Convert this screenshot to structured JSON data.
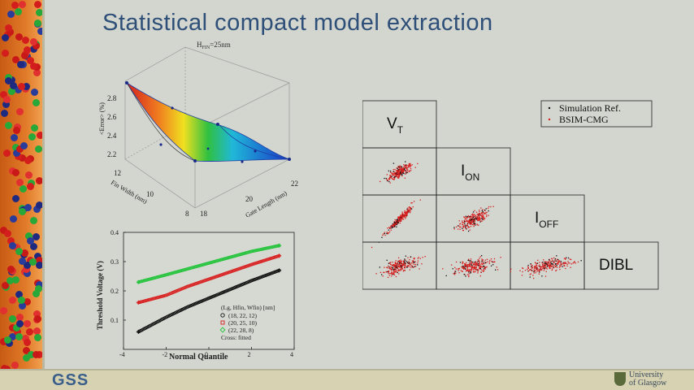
{
  "slide": {
    "title": "Statistical compact model extraction"
  },
  "surface_plot": {
    "header_h": "H",
    "header_sub": "FIN",
    "header_val": "=25nm",
    "z_label": "<Error> (%)",
    "z_ticks": [
      "2.2",
      "2.4",
      "2.6",
      "2.8"
    ],
    "x_label": "Gate Length (nm)",
    "x_ticks": [
      "18",
      "20",
      "22"
    ],
    "y_label": "Fin Width (nm)",
    "y_ticks": [
      "8",
      "10",
      "12"
    ]
  },
  "chart_data": {
    "type": "scatter",
    "xlabel": "Normal Quantile",
    "ylabel": "Threshold Voltage (V)",
    "xlim": [
      -4,
      4
    ],
    "ylim": [
      0,
      0.4
    ],
    "x_ticks": [
      "-4",
      "-2",
      "0",
      "2",
      "4"
    ],
    "y_ticks": [
      "0.1",
      "0.2",
      "0.3",
      "0.4"
    ],
    "legend_title": "(Lg, Hfin, Wfin) [nm]",
    "legend_note": "Cross: fitted",
    "series": [
      {
        "name": "(18, 22, 12)",
        "color": "#111111",
        "x": [
          -3.3,
          -2,
          -1,
          0,
          1,
          2,
          3.3
        ],
        "y": [
          0.06,
          0.11,
          0.145,
          0.175,
          0.205,
          0.235,
          0.27
        ]
      },
      {
        "name": "(20, 25, 10)",
        "color": "#d81e1e",
        "x": [
          -3.3,
          -2,
          -1,
          0,
          1,
          2,
          3.3
        ],
        "y": [
          0.16,
          0.185,
          0.215,
          0.24,
          0.265,
          0.29,
          0.32
        ]
      },
      {
        "name": "(22, 28, 8)",
        "color": "#22c43a",
        "x": [
          -3.3,
          -2,
          -1,
          0,
          1,
          2,
          3.3
        ],
        "y": [
          0.23,
          0.255,
          0.275,
          0.295,
          0.315,
          0.335,
          0.355
        ]
      }
    ]
  },
  "matrix": {
    "diag": [
      {
        "main": "V",
        "sub": "T"
      },
      {
        "main": "I",
        "sub": "ON"
      },
      {
        "main": "I",
        "sub": "OFF"
      },
      {
        "main": "DIBL",
        "sub": ""
      }
    ],
    "legend": [
      "Simulation Ref.",
      "BSIM-CMG"
    ],
    "colors": {
      "sim": "#111111",
      "bsim": "#d81e1e"
    }
  }
}
